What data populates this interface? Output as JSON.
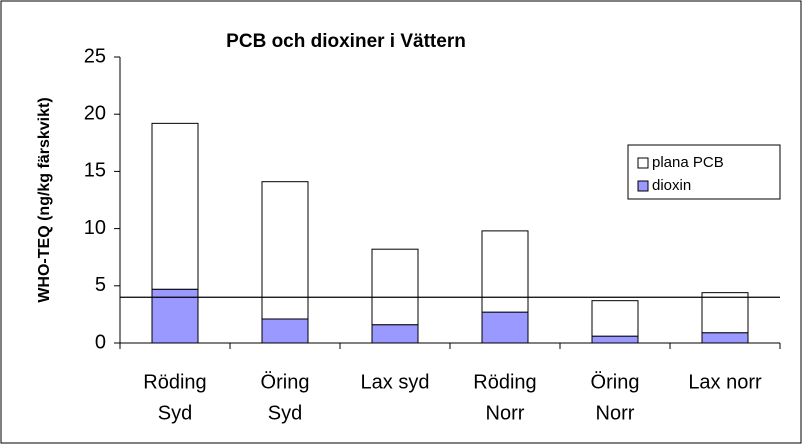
{
  "chart_data": {
    "type": "stacked_bar",
    "title": "PCB och dioxiner i Vättern",
    "y_label": "WHO-TEQ (ng/kg färskvikt)",
    "categories": [
      [
        "Röding",
        "Syd"
      ],
      [
        "Öring",
        "Syd"
      ],
      [
        "Lax syd"
      ],
      [
        "Röding",
        "Norr"
      ],
      [
        "Öring",
        "Norr"
      ],
      [
        "Lax norr"
      ]
    ],
    "series": [
      {
        "name": "dioxin",
        "color": "#9999ff",
        "values": [
          4.7,
          2.1,
          1.6,
          2.7,
          0.6,
          0.9
        ]
      },
      {
        "name": "plana PCB",
        "color": "#ffffff",
        "values": [
          14.5,
          12.0,
          6.6,
          7.1,
          3.1,
          3.5
        ]
      }
    ],
    "reference_line": 4,
    "ylim": [
      0,
      25
    ],
    "yticks": [
      0,
      5,
      10,
      15,
      20,
      25
    ],
    "legend": "right"
  }
}
